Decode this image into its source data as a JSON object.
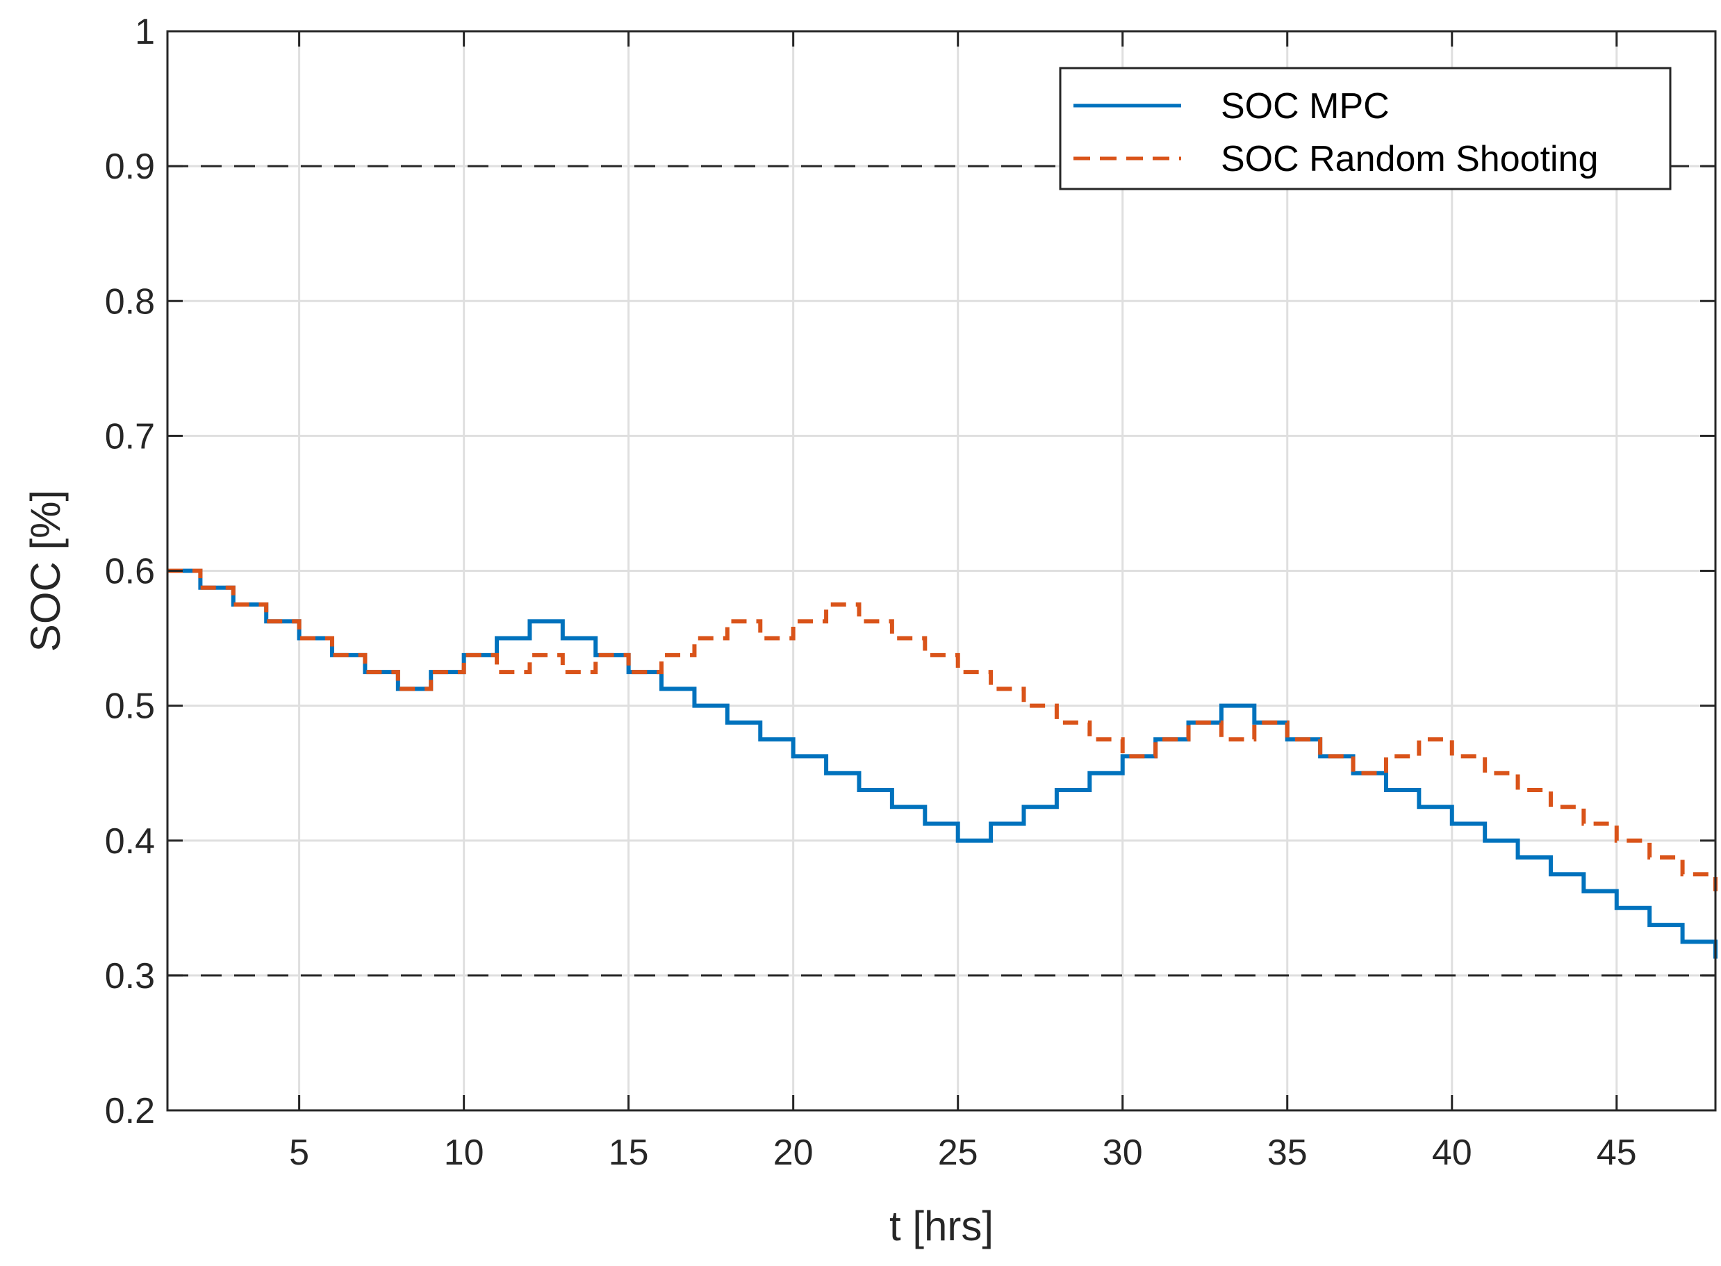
{
  "chart_data": {
    "type": "line",
    "step": true,
    "xlabel": "t [hrs]",
    "ylabel": "SOC [%]",
    "xlim": [
      1,
      48
    ],
    "ylim": [
      0.2,
      1.0
    ],
    "xticks": [
      5,
      10,
      15,
      20,
      25,
      30,
      35,
      40,
      45
    ],
    "xtick_labels": [
      "5",
      "10",
      "15",
      "20",
      "25",
      "30",
      "35",
      "40",
      "45"
    ],
    "yticks": [
      0.2,
      0.3,
      0.4,
      0.5,
      0.6,
      0.7,
      0.8,
      0.9,
      1.0
    ],
    "ytick_labels": [
      "0.2",
      "0.3",
      "0.4",
      "0.5",
      "0.6",
      "0.7",
      "0.8",
      "0.9",
      "1"
    ],
    "grid": true,
    "reference_lines": [
      {
        "y": 0.9,
        "style": "dashed",
        "color": "#262626"
      },
      {
        "y": 0.3,
        "style": "dashed",
        "color": "#262626"
      }
    ],
    "legend_position": "top-right",
    "series": [
      {
        "name": "SOC MPC",
        "color": "#0072bd",
        "line_style": "solid",
        "x": [
          1,
          2,
          3,
          4,
          5,
          6,
          7,
          8,
          9,
          10,
          11,
          12,
          13,
          14,
          15,
          16,
          17,
          18,
          19,
          20,
          21,
          22,
          23,
          24,
          25,
          26,
          27,
          28,
          29,
          30,
          31,
          32,
          33,
          34,
          35,
          36,
          37,
          38,
          39,
          40,
          41,
          42,
          43,
          44,
          45,
          46,
          47,
          48
        ],
        "values": [
          0.6,
          0.5875,
          0.575,
          0.5625,
          0.55,
          0.5375,
          0.525,
          0.5125,
          0.525,
          0.5375,
          0.55,
          0.5625,
          0.55,
          0.5375,
          0.525,
          0.5125,
          0.5,
          0.4875,
          0.475,
          0.4625,
          0.45,
          0.4375,
          0.425,
          0.4125,
          0.4,
          0.4125,
          0.425,
          0.4375,
          0.45,
          0.4625,
          0.475,
          0.4875,
          0.5,
          0.4875,
          0.475,
          0.4625,
          0.45,
          0.4375,
          0.425,
          0.4125,
          0.4,
          0.3875,
          0.375,
          0.3625,
          0.35,
          0.3375,
          0.325,
          0.3125
        ]
      },
      {
        "name": "SOC Random Shooting",
        "color": "#d95319",
        "line_style": "dashed",
        "x": [
          1,
          2,
          3,
          4,
          5,
          6,
          7,
          8,
          9,
          10,
          11,
          12,
          13,
          14,
          15,
          16,
          17,
          18,
          19,
          20,
          21,
          22,
          23,
          24,
          25,
          26,
          27,
          28,
          29,
          30,
          31,
          32,
          33,
          34,
          35,
          36,
          37,
          38,
          39,
          40,
          41,
          42,
          43,
          44,
          45,
          46,
          47,
          48
        ],
        "values": [
          0.6,
          0.5875,
          0.575,
          0.5625,
          0.55,
          0.5375,
          0.525,
          0.5125,
          0.525,
          0.5375,
          0.525,
          0.5375,
          0.525,
          0.5375,
          0.525,
          0.5375,
          0.55,
          0.5625,
          0.55,
          0.5625,
          0.575,
          0.5625,
          0.55,
          0.5375,
          0.525,
          0.5125,
          0.5,
          0.4875,
          0.475,
          0.4625,
          0.475,
          0.4875,
          0.475,
          0.4875,
          0.475,
          0.4625,
          0.45,
          0.4625,
          0.475,
          0.4625,
          0.45,
          0.4375,
          0.425,
          0.4125,
          0.4,
          0.3875,
          0.375,
          0.3625
        ]
      }
    ]
  }
}
